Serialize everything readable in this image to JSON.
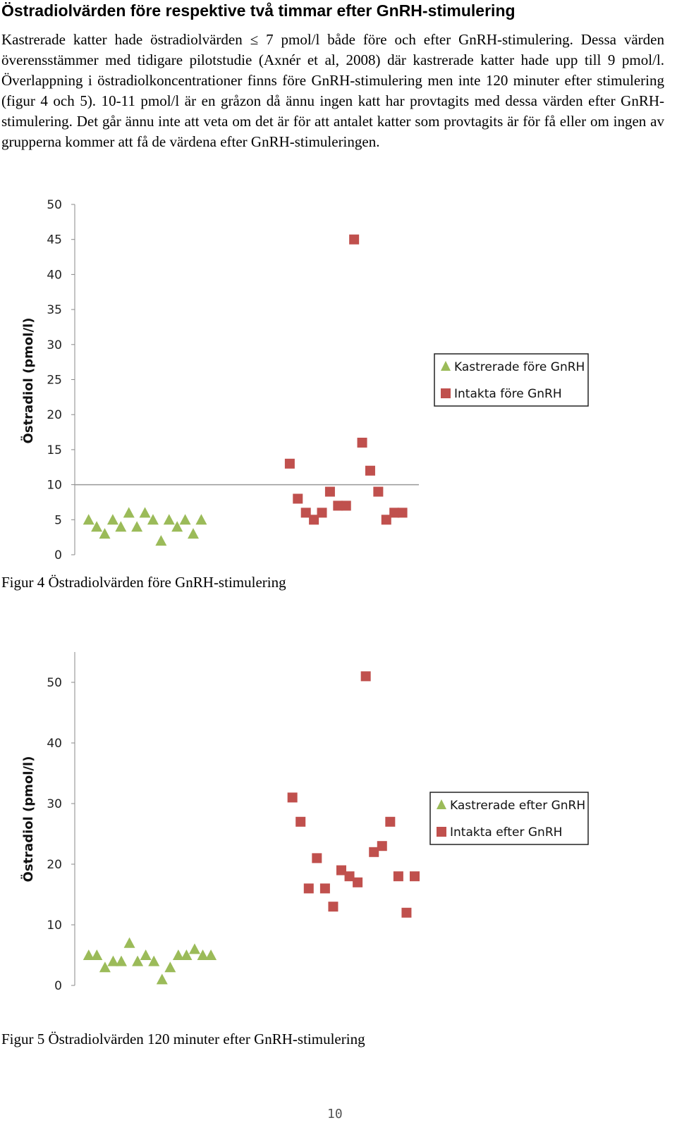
{
  "page": {
    "heading": "Östradiolvärden före respektive två timmar efter GnRH-stimulering",
    "paragraph": "Kastrerade katter hade östradiolvärden ≤ 7 pmol/l både före och efter GnRH-stimulering. Dessa värden överensstämmer med tidigare pilotstudie (Axnér et al, 2008) där kastrerade katter hade upp till 9 pmol/l. Överlappning i östradiolkoncentrationer finns före GnRH-stimulering men inte 120 minuter efter stimulering (figur 4 och 5). 10-11 pmol/l är en gråzon då ännu ingen katt har provtagits med dessa värden efter GnRH-stimulering. Det går ännu inte att veta om det är för att antalet katter som provtagits är för få eller om ingen av grupperna kommer att få de värdena efter GnRH-stimuleringen.",
    "caption_fig4": "Figur 4 Östradiolvärden före GnRH-stimulering",
    "caption_fig5": "Figur 5 Östradiolvärden 120 minuter efter GnRH-stimulering",
    "page_number": "10"
  },
  "chart_data": [
    {
      "type": "scatter",
      "title": "",
      "xlabel": "",
      "ylabel": "Östradiol (pmol/l)",
      "ylim": [
        0,
        50
      ],
      "yticks": [
        0,
        5,
        10,
        15,
        20,
        25,
        30,
        35,
        40,
        45,
        50
      ],
      "xlim": [
        0.5,
        41
      ],
      "reference_line_y": 10,
      "legend_position": "right",
      "series": [
        {
          "name": "Kastrerade före GnRH",
          "marker": "triangle",
          "color": "#9bbb59",
          "x": [
            1,
            2,
            3,
            4,
            5,
            6,
            7,
            8,
            9,
            10,
            11,
            12,
            13,
            14,
            15
          ],
          "y": [
            5,
            4,
            3,
            5,
            4,
            6,
            4,
            6,
            5,
            2,
            5,
            4,
            5,
            3,
            5
          ]
        },
        {
          "name": "Intakta före GnRH",
          "marker": "square",
          "color": "#c0504d",
          "x": [
            26,
            27,
            28,
            29,
            30,
            31,
            32,
            33,
            34,
            35,
            36,
            37,
            38,
            39,
            40
          ],
          "y": [
            13,
            8,
            6,
            5,
            6,
            9,
            7,
            7,
            45,
            16,
            12,
            9,
            5,
            6,
            6
          ]
        }
      ]
    },
    {
      "type": "scatter",
      "title": "",
      "xlabel": "",
      "ylabel": "Östradiol (pmol/l)",
      "ylim": [
        0,
        55
      ],
      "yticks": [
        0,
        10,
        20,
        30,
        40,
        50
      ],
      "xlim": [
        0.5,
        41
      ],
      "legend_position": "right",
      "series": [
        {
          "name": "Kastrerade efter GnRH",
          "marker": "triangle",
          "color": "#9bbb59",
          "x": [
            1,
            2,
            3,
            4,
            5,
            6,
            7,
            8,
            9,
            10,
            11,
            12,
            13,
            14,
            15,
            16
          ],
          "y": [
            5,
            5,
            3,
            4,
            4,
            7,
            4,
            5,
            4,
            1,
            3,
            5,
            5,
            6,
            5,
            5
          ]
        },
        {
          "name": "Intakta efter GnRH",
          "marker": "square",
          "color": "#c0504d",
          "x": [
            26,
            27,
            28,
            29,
            30,
            31,
            32,
            33,
            34,
            35,
            36,
            37,
            38,
            39,
            40,
            41
          ],
          "y": [
            31,
            27,
            16,
            21,
            16,
            13,
            19,
            18,
            17,
            51,
            22,
            23,
            27,
            18,
            12,
            18
          ]
        }
      ]
    }
  ]
}
